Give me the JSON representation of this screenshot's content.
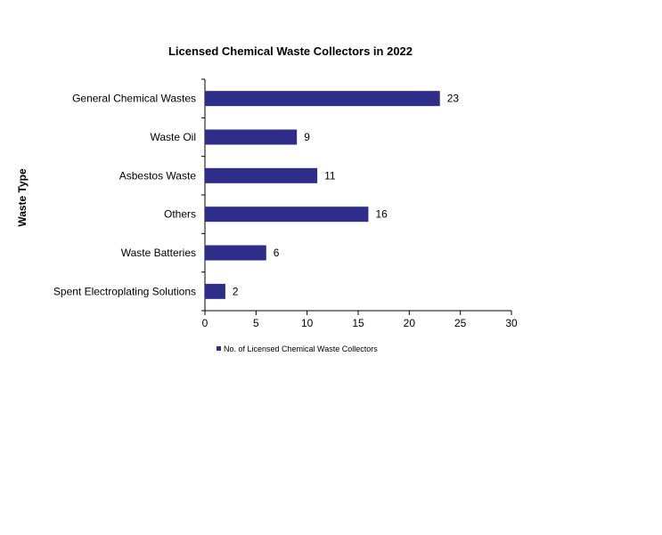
{
  "chart_data": {
    "type": "bar",
    "orientation": "horizontal",
    "title": "Licensed Chemical Waste Collectors  in 2022",
    "ylabel": "Waste Type",
    "xlabel": "",
    "categories": [
      "General Chemical Wastes",
      "Waste Oil",
      "Asbestos Waste",
      "Others",
      "Waste Batteries",
      "Spent Electroplating Solutions"
    ],
    "series": [
      {
        "name": "No. of Licensed Chemical Waste Collectors",
        "values": [
          23,
          9,
          11,
          16,
          6,
          2
        ]
      }
    ],
    "xlim": [
      0,
      30
    ],
    "x_ticks": [
      0,
      5,
      10,
      15,
      20,
      25,
      30
    ],
    "data_labels": true,
    "grid": false,
    "legend_position": "bottom-left",
    "bar_color": "#2e2e8a"
  }
}
